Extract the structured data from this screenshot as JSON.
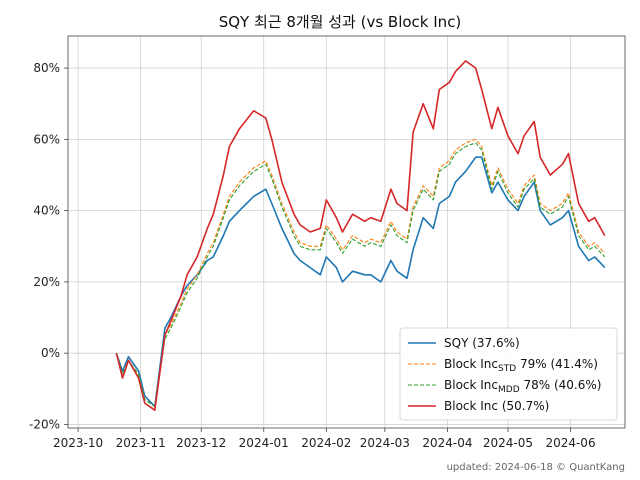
{
  "chart_data": {
    "type": "line",
    "title": "SQY 최근 8개월 성과 (vs Block Inc)",
    "footer": "updated: 2024-06-18 © QuantKang",
    "xlabel": "",
    "ylabel": "",
    "x_ticks": [
      "2023-10",
      "2023-11",
      "2023-12",
      "2024-01",
      "2024-02",
      "2024-03",
      "2024-04",
      "2024-05",
      "2024-06"
    ],
    "y_ticks": [
      "-20%",
      "0%",
      "20%",
      "40%",
      "60%",
      "80%"
    ],
    "xlim": [
      "2023-09-26",
      "2024-06-28"
    ],
    "ylim": [
      -0.21,
      0.89
    ],
    "grid": true,
    "legend_position": "lower-right",
    "x": [
      "2023-10-20",
      "2023-10-23",
      "2023-10-26",
      "2023-10-31",
      "2023-11-03",
      "2023-11-08",
      "2023-11-13",
      "2023-11-16",
      "2023-11-21",
      "2023-11-24",
      "2023-11-29",
      "2023-12-04",
      "2023-12-07",
      "2023-12-12",
      "2023-12-15",
      "2023-12-20",
      "2023-12-27",
      "2024-01-02",
      "2024-01-05",
      "2024-01-10",
      "2024-01-16",
      "2024-01-19",
      "2024-01-24",
      "2024-01-29",
      "2024-02-01",
      "2024-02-06",
      "2024-02-09",
      "2024-02-14",
      "2024-02-20",
      "2024-02-23",
      "2024-02-28",
      "2024-03-04",
      "2024-03-07",
      "2024-03-12",
      "2024-03-15",
      "2024-03-20",
      "2024-03-25",
      "2024-03-28",
      "2024-04-02",
      "2024-04-05",
      "2024-04-10",
      "2024-04-15",
      "2024-04-18",
      "2024-04-23",
      "2024-04-26",
      "2024-05-01",
      "2024-05-06",
      "2024-05-09",
      "2024-05-14",
      "2024-05-17",
      "2024-05-22",
      "2024-05-28",
      "2024-05-31",
      "2024-06-05",
      "2024-06-10",
      "2024-06-13",
      "2024-06-18"
    ],
    "series": [
      {
        "name": "SQY (37.6%)",
        "color": "#1f77b4",
        "dash": "solid",
        "values": [
          0.0,
          -0.05,
          -0.01,
          -0.05,
          -0.12,
          -0.15,
          0.07,
          0.1,
          0.16,
          0.19,
          0.22,
          0.26,
          0.27,
          0.33,
          0.37,
          0.4,
          0.44,
          0.46,
          0.42,
          0.35,
          0.28,
          0.26,
          0.24,
          0.22,
          0.27,
          0.24,
          0.2,
          0.23,
          0.22,
          0.22,
          0.2,
          0.26,
          0.23,
          0.21,
          0.29,
          0.38,
          0.35,
          0.42,
          0.44,
          0.48,
          0.51,
          0.55,
          0.55,
          0.45,
          0.48,
          0.43,
          0.4,
          0.44,
          0.48,
          0.4,
          0.36,
          0.38,
          0.4,
          0.3,
          0.26,
          0.27,
          0.24
        ]
      },
      {
        "name": "Block IncSTD 79% (41.4%)",
        "label_main": "Block Inc",
        "label_sub": "STD",
        "label_rest": " 79% (41.4%)",
        "color": "#ff7f0e",
        "dash": "dashed",
        "values": [
          0.0,
          -0.06,
          -0.02,
          -0.06,
          -0.13,
          -0.15,
          0.05,
          0.08,
          0.14,
          0.18,
          0.22,
          0.28,
          0.31,
          0.39,
          0.44,
          0.48,
          0.52,
          0.54,
          0.5,
          0.42,
          0.34,
          0.31,
          0.3,
          0.3,
          0.36,
          0.32,
          0.29,
          0.33,
          0.31,
          0.32,
          0.31,
          0.37,
          0.34,
          0.32,
          0.41,
          0.47,
          0.44,
          0.52,
          0.54,
          0.57,
          0.59,
          0.6,
          0.58,
          0.47,
          0.52,
          0.46,
          0.42,
          0.47,
          0.5,
          0.42,
          0.4,
          0.42,
          0.45,
          0.34,
          0.3,
          0.31,
          0.28
        ]
      },
      {
        "name": "Block IncMDD 78% (40.6%)",
        "label_main": "Block Inc",
        "label_sub": "MDD",
        "label_rest": " 78% (40.6%)",
        "color": "#2ca02c",
        "dash": "dashed",
        "values": [
          0.0,
          -0.06,
          -0.02,
          -0.06,
          -0.13,
          -0.15,
          0.04,
          0.07,
          0.13,
          0.17,
          0.21,
          0.27,
          0.3,
          0.38,
          0.43,
          0.47,
          0.51,
          0.53,
          0.49,
          0.41,
          0.33,
          0.3,
          0.29,
          0.29,
          0.35,
          0.31,
          0.28,
          0.32,
          0.3,
          0.31,
          0.3,
          0.36,
          0.33,
          0.31,
          0.4,
          0.46,
          0.43,
          0.51,
          0.53,
          0.56,
          0.58,
          0.59,
          0.57,
          0.46,
          0.51,
          0.45,
          0.41,
          0.46,
          0.49,
          0.41,
          0.39,
          0.41,
          0.44,
          0.33,
          0.29,
          0.3,
          0.27
        ]
      },
      {
        "name": "Block Inc (50.7%)",
        "color": "#d62728",
        "dash": "solid",
        "values": [
          0.0,
          -0.07,
          -0.02,
          -0.07,
          -0.14,
          -0.16,
          0.05,
          0.09,
          0.16,
          0.22,
          0.27,
          0.35,
          0.39,
          0.5,
          0.58,
          0.63,
          0.68,
          0.66,
          0.6,
          0.48,
          0.39,
          0.36,
          0.34,
          0.35,
          0.43,
          0.38,
          0.34,
          0.39,
          0.37,
          0.38,
          0.37,
          0.46,
          0.42,
          0.4,
          0.62,
          0.7,
          0.63,
          0.74,
          0.76,
          0.79,
          0.82,
          0.8,
          0.74,
          0.63,
          0.69,
          0.61,
          0.56,
          0.61,
          0.65,
          0.55,
          0.5,
          0.53,
          0.56,
          0.42,
          0.37,
          0.38,
          0.33
        ]
      }
    ]
  }
}
